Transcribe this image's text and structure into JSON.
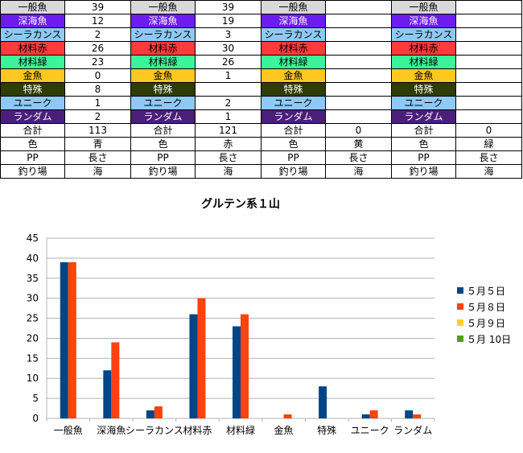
{
  "sheet": {
    "rows": [
      [
        {
          "t": "一般魚",
          "bg": "#d9d9d9"
        },
        {
          "t": "39"
        },
        {
          "t": "一般魚",
          "bg": "#d9d9d9"
        },
        {
          "t": "39"
        },
        {
          "t": "一般魚",
          "bg": "#d9d9d9"
        },
        {
          "t": ""
        },
        {
          "t": "一般魚",
          "bg": "#d9d9d9"
        },
        {
          "t": ""
        }
      ],
      [
        {
          "t": "深海魚",
          "bg": "#6d1cf0",
          "fg": "#ffffff"
        },
        {
          "t": "12"
        },
        {
          "t": "深海魚",
          "bg": "#6d1cf0",
          "fg": "#ffffff"
        },
        {
          "t": "19"
        },
        {
          "t": "深海魚",
          "bg": "#6d1cf0",
          "fg": "#ffffff"
        },
        {
          "t": ""
        },
        {
          "t": "深海魚",
          "bg": "#6d1cf0",
          "fg": "#ffffff"
        },
        {
          "t": ""
        }
      ],
      [
        {
          "t": "シーラカンス",
          "bg": "#8ec9f3"
        },
        {
          "t": "2"
        },
        {
          "t": "シーラカンス",
          "bg": "#8ec9f3"
        },
        {
          "t": "3"
        },
        {
          "t": "シーラカンス",
          "bg": "#8ec9f3"
        },
        {
          "t": ""
        },
        {
          "t": "シーラカンス",
          "bg": "#8ec9f3"
        },
        {
          "t": ""
        }
      ],
      [
        {
          "t": "材料赤",
          "bg": "#ff3b3b"
        },
        {
          "t": "26"
        },
        {
          "t": "材料赤",
          "bg": "#ff3b3b"
        },
        {
          "t": "30"
        },
        {
          "t": "材料赤",
          "bg": "#ff3b3b"
        },
        {
          "t": ""
        },
        {
          "t": "材料赤",
          "bg": "#ff3b3b"
        },
        {
          "t": ""
        }
      ],
      [
        {
          "t": "材料緑",
          "bg": "#3cf59a"
        },
        {
          "t": "23"
        },
        {
          "t": "材料緑",
          "bg": "#3cf59a"
        },
        {
          "t": "26"
        },
        {
          "t": "材料緑",
          "bg": "#3cf59a"
        },
        {
          "t": ""
        },
        {
          "t": "材料緑",
          "bg": "#3cf59a"
        },
        {
          "t": ""
        }
      ],
      [
        {
          "t": "金魚",
          "bg": "#ffc820"
        },
        {
          "t": "0"
        },
        {
          "t": "金魚",
          "bg": "#ffc820"
        },
        {
          "t": "1"
        },
        {
          "t": "金魚",
          "bg": "#ffc820"
        },
        {
          "t": ""
        },
        {
          "t": "金魚",
          "bg": "#ffc820"
        },
        {
          "t": ""
        }
      ],
      [
        {
          "t": "特殊",
          "bg": "#2e3d06",
          "fg": "#ffffff"
        },
        {
          "t": "8"
        },
        {
          "t": "特殊",
          "bg": "#2e3d06",
          "fg": "#ffffff"
        },
        {
          "t": ""
        },
        {
          "t": "特殊",
          "bg": "#2e3d06",
          "fg": "#ffffff"
        },
        {
          "t": ""
        },
        {
          "t": "特殊",
          "bg": "#2e3d06",
          "fg": "#ffffff"
        },
        {
          "t": ""
        }
      ],
      [
        {
          "t": "ユニーク",
          "bg": "#8ec9f3"
        },
        {
          "t": "1"
        },
        {
          "t": "ユニーク",
          "bg": "#8ec9f3"
        },
        {
          "t": "2"
        },
        {
          "t": "ユニーク",
          "bg": "#8ec9f3"
        },
        {
          "t": ""
        },
        {
          "t": "ユニーク",
          "bg": "#8ec9f3"
        },
        {
          "t": ""
        }
      ],
      [
        {
          "t": "ランダム",
          "bg": "#4a1f7a",
          "fg": "#ffffff"
        },
        {
          "t": "2"
        },
        {
          "t": "ランダム",
          "bg": "#4a1f7a",
          "fg": "#ffffff"
        },
        {
          "t": "1"
        },
        {
          "t": "ランダム",
          "bg": "#4a1f7a",
          "fg": "#ffffff"
        },
        {
          "t": ""
        },
        {
          "t": "ランダム",
          "bg": "#4a1f7a",
          "fg": "#ffffff"
        },
        {
          "t": ""
        }
      ],
      [
        {
          "t": "合計"
        },
        {
          "t": "113"
        },
        {
          "t": "合計"
        },
        {
          "t": "121"
        },
        {
          "t": "合計"
        },
        {
          "t": "0"
        },
        {
          "t": "合計"
        },
        {
          "t": "0"
        }
      ],
      [
        {
          "t": "色"
        },
        {
          "t": "青"
        },
        {
          "t": "色"
        },
        {
          "t": "赤"
        },
        {
          "t": "色"
        },
        {
          "t": "黄"
        },
        {
          "t": "色"
        },
        {
          "t": "緑"
        }
      ],
      [
        {
          "t": "PP"
        },
        {
          "t": "長さ"
        },
        {
          "t": "PP"
        },
        {
          "t": "長さ"
        },
        {
          "t": "PP"
        },
        {
          "t": "長さ"
        },
        {
          "t": "PP"
        },
        {
          "t": "長さ"
        }
      ],
      [
        {
          "t": "釣り場"
        },
        {
          "t": "海"
        },
        {
          "t": "釣り場"
        },
        {
          "t": "海"
        },
        {
          "t": "釣り場"
        },
        {
          "t": "海"
        },
        {
          "t": "釣り場"
        },
        {
          "t": "海"
        }
      ]
    ]
  },
  "chart_data": {
    "type": "bar",
    "title": "グルテン系１山",
    "categories": [
      "一般魚",
      "深海魚",
      "シーラカンス",
      "材料赤",
      "材料緑",
      "金魚",
      "特殊",
      "ユニーク",
      "ランダム"
    ],
    "series": [
      {
        "name": "５月５日",
        "color": "#004586",
        "values": [
          39,
          12,
          2,
          26,
          23,
          0,
          8,
          1,
          2
        ]
      },
      {
        "name": "５月８日",
        "color": "#ff420e",
        "values": [
          39,
          19,
          3,
          30,
          26,
          1,
          0,
          2,
          1
        ]
      },
      {
        "name": "５月９日",
        "color": "#ffd320",
        "values": [
          0,
          0,
          0,
          0,
          0,
          0,
          0,
          0,
          0
        ]
      },
      {
        "name": "５月 10日",
        "color": "#579d1c",
        "values": [
          0,
          0,
          0,
          0,
          0,
          0,
          0,
          0,
          0
        ]
      }
    ],
    "ylim": [
      0,
      45
    ],
    "yticks": [
      0,
      5,
      10,
      15,
      20,
      25,
      30,
      35,
      40,
      45
    ],
    "grid": true,
    "legend": "right"
  }
}
